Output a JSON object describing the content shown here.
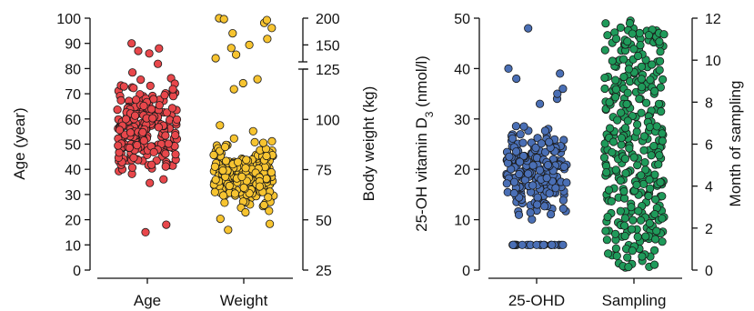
{
  "chart_data": [
    {
      "type": "scatter",
      "subtype": "strip",
      "categories": [
        "Age",
        "Weight"
      ],
      "left_axis": {
        "label": "Age (year)",
        "ylim": [
          0,
          100
        ],
        "ticks": [
          "0",
          "10",
          "20",
          "30",
          "40",
          "50",
          "60",
          "70",
          "80",
          "90",
          "100"
        ]
      },
      "right_axis": {
        "label": "Body weight (kg)",
        "broken": true,
        "ticks": [
          "25",
          "50",
          "75",
          "100",
          "125",
          "150",
          "200"
        ]
      },
      "series": [
        {
          "name": "Age",
          "color": "#e8474b",
          "axis": "left",
          "summary": {
            "min": 15,
            "max": 90,
            "dense_range": [
              20,
              82
            ]
          }
        },
        {
          "name": "Weight",
          "color": "#f7c430",
          "axis": "right",
          "summary": {
            "min": 45,
            "max": 200,
            "dense_range": [
              50,
              110
            ]
          }
        }
      ]
    },
    {
      "type": "scatter",
      "subtype": "strip",
      "categories": [
        "25-OHD",
        "Sampling"
      ],
      "left_axis": {
        "label_main": "25-OH vitamin D",
        "label_sub": "3",
        "label_unit": " (nmol/l)",
        "ylim": [
          0,
          50
        ],
        "ticks": [
          "0",
          "10",
          "20",
          "30",
          "40",
          "50"
        ]
      },
      "right_axis": {
        "label": "Month of sampling",
        "ylim": [
          0,
          12
        ],
        "ticks": [
          "0",
          "2",
          "4",
          "6",
          "8",
          "10",
          "12"
        ]
      },
      "series": [
        {
          "name": "25-OHD",
          "color": "#4a6fb5",
          "axis": "left",
          "summary": {
            "min": 5,
            "max": 48,
            "dense_range": [
              5,
              31
            ]
          }
        },
        {
          "name": "Sampling",
          "color": "#1f9a5a",
          "axis": "right",
          "summary": {
            "min": 0,
            "max": 12,
            "dense_range": [
              0,
              12
            ]
          }
        }
      ]
    }
  ]
}
